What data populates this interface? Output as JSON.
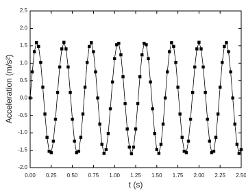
{
  "chart_data": {
    "type": "scatter-line",
    "x_label": "t (s)",
    "y_label": "Acceleration (m/s²)",
    "color": "#000000",
    "line": true,
    "marker": "square",
    "x": [
      0,
      0.025,
      0.05,
      0.075,
      0.1,
      0.125,
      0.15,
      0.175,
      0.2,
      0.225,
      0.25,
      0.275,
      0.3,
      0.325,
      0.35,
      0.375,
      0.4,
      0.425,
      0.45,
      0.475,
      0.5,
      0.525,
      0.55,
      0.575,
      0.6,
      0.625,
      0.65,
      0.675,
      0.7,
      0.725,
      0.75,
      0.775,
      0.8,
      0.825,
      0.85,
      0.875,
      0.9,
      0.925,
      0.95,
      0.975,
      1,
      1.025,
      1.05,
      1.075,
      1.1,
      1.125,
      1.15,
      1.175,
      1.2,
      1.225,
      1.25,
      1.275,
      1.3,
      1.325,
      1.35,
      1.375,
      1.4,
      1.425,
      1.45,
      1.475,
      1.5,
      1.525,
      1.55,
      1.575,
      1.6,
      1.625,
      1.65,
      1.675,
      1.7,
      1.725,
      1.75,
      1.775,
      1.8,
      1.825,
      1.85,
      1.875,
      1.9,
      1.925,
      1.95,
      1.975,
      2,
      2.025,
      2.05,
      2.075,
      2.1,
      2.125,
      2.15,
      2.175,
      2.2,
      2.225,
      2.25,
      2.275,
      2.3,
      2.325,
      2.35,
      2.375,
      2.4,
      2.425,
      2.45,
      2.475,
      2.5
    ],
    "values": [
      0,
      0.75,
      1.33,
      1.59,
      1.48,
      1.02,
      0.31,
      -0.46,
      -1.13,
      -1.53,
      -1.57,
      -1.24,
      -0.61,
      0.16,
      0.89,
      1.41,
      1.6,
      1.41,
      0.89,
      0.16,
      -0.61,
      -1.24,
      -1.57,
      -1.53,
      -1.13,
      -0.46,
      0.31,
      1.02,
      1.48,
      1.59,
      1.33,
      0.75,
      0,
      -0.75,
      -1.33,
      -1.59,
      -1.48,
      -1.02,
      -0.31,
      0.46,
      1.13,
      1.53,
      1.57,
      1.24,
      0.61,
      -0.16,
      -0.89,
      -1.41,
      -1.6,
      -1.41,
      -0.89,
      -0.16,
      0.61,
      1.24,
      1.57,
      1.53,
      1.13,
      0.46,
      -0.31,
      -1.02,
      -1.48,
      -1.59,
      -1.33,
      -0.75,
      0,
      0.75,
      1.33,
      1.59,
      1.48,
      1.02,
      0.31,
      -0.46,
      -1.13,
      -1.53,
      -1.57,
      -1.24,
      -0.61,
      0.16,
      0.89,
      1.41,
      1.6,
      1.41,
      0.89,
      0.16,
      -0.61,
      -1.24,
      -1.57,
      -1.53,
      -1.13,
      -0.46,
      0.31,
      1.02,
      1.48,
      1.59,
      1.33,
      0.75,
      0,
      -0.75,
      -1.33,
      -1.59,
      -1.48
    ],
    "xlim": [
      0,
      2.5
    ],
    "xticks": [
      {
        "value": 0,
        "label": "0.00"
      },
      0.25,
      {
        "value": 0.5,
        "label": "0.50"
      },
      0.75,
      {
        "value": 1,
        "label": "1.00"
      },
      1.25,
      {
        "value": 1.5,
        "label": "1.50"
      },
      1.75,
      {
        "value": 2,
        "label": "2.00"
      },
      2.25,
      {
        "value": 2.5,
        "label": "2.50"
      }
    ],
    "ylim": [
      -2,
      2.5
    ],
    "yticks": [
      {
        "value": -2,
        "label": "-2.0"
      },
      -1.5,
      {
        "value": -1,
        "label": "-1.0"
      },
      -0.5,
      {
        "value": 0,
        "label": "0.0"
      },
      0.5,
      {
        "value": 1,
        "label": "1.0"
      },
      1.5,
      {
        "value": 2,
        "label": "2.0"
      },
      2.5
    ]
  }
}
